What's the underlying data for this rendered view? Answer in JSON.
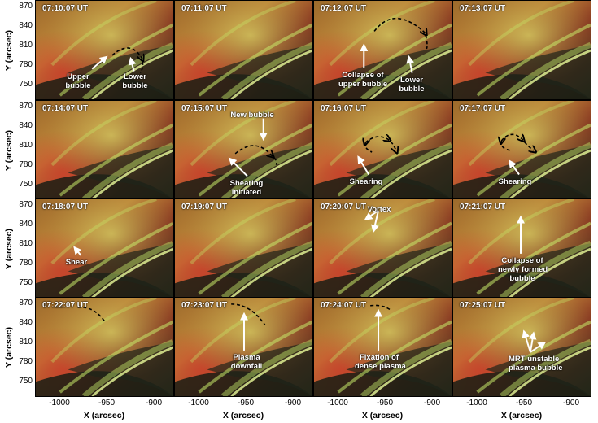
{
  "figure": {
    "y_axis_label": "Y (arcsec)",
    "x_axis_label": "X (arcsec)",
    "y_ticks": [
      "870",
      "840",
      "810",
      "780",
      "750"
    ],
    "x_ticks": [
      "-1000",
      "-950",
      "-900"
    ]
  },
  "colors": {
    "loop_green": "#b8e05a",
    "plasma_red": "#b5402a",
    "annotation": "#ffffff",
    "dashed_curve": "#000000"
  },
  "panels": [
    {
      "time": "07:10:07 UT",
      "labels": [
        "Upper\nbubble",
        "Lower\nbubble"
      ]
    },
    {
      "time": "07:11:07 UT",
      "labels": []
    },
    {
      "time": "07:12:07 UT",
      "labels": [
        "Collapse of\nupper bubble",
        "Lower\nbubble"
      ]
    },
    {
      "time": "07:13:07 UT",
      "labels": []
    },
    {
      "time": "07:14:07 UT",
      "labels": []
    },
    {
      "time": "07:15:07 UT",
      "labels": [
        "New bubble",
        "Shearing\ninitiated"
      ]
    },
    {
      "time": "07:16:07 UT",
      "labels": [
        "Shearing"
      ]
    },
    {
      "time": "07:17:07 UT",
      "labels": [
        "Shearing"
      ]
    },
    {
      "time": "07:18:07 UT",
      "labels": [
        "Shear"
      ]
    },
    {
      "time": "07:19:07 UT",
      "labels": []
    },
    {
      "time": "07:20:07 UT",
      "labels": [
        "Vortex"
      ]
    },
    {
      "time": "07:21:07 UT",
      "labels": [
        "Collapse of\nnewly formed\nbubble"
      ]
    },
    {
      "time": "07:22:07 UT",
      "labels": []
    },
    {
      "time": "07:23:07 UT",
      "labels": [
        "Plasma\ndownfall"
      ]
    },
    {
      "time": "07:24:07 UT",
      "labels": [
        "Fixation of\ndense plasma"
      ]
    },
    {
      "time": "07:25:07 UT",
      "labels": [
        "MRT unstable\nplasma bubble"
      ]
    }
  ]
}
